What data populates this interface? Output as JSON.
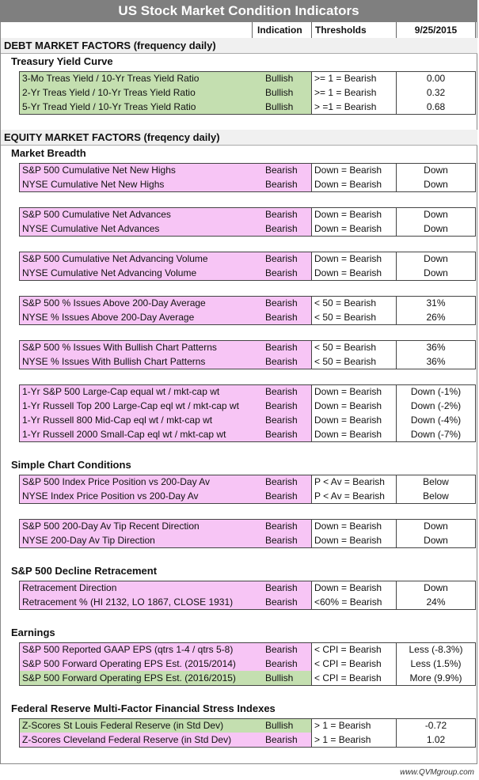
{
  "title": "US Stock Market Condition Indicators",
  "header": [
    "Indication",
    "Thresholds",
    "9/25/2015"
  ],
  "sections": [
    {
      "title": "DEBT MARKET FACTORS (frequency daily)",
      "subsections": [
        {
          "title": "Treasury Yield Curve",
          "groups": [
            [
              {
                "label": "3-Mo Treas Yield / 10-Yr Treas Yield Ratio",
                "indication": "Bullish",
                "threshold": ">= 1 = Bearish",
                "value": "0.00"
              },
              {
                "label": "2-Yr Treas Yield / 10-Yr Treas Yield Ratio",
                "indication": "Bullish",
                "threshold": ">= 1 = Bearish",
                "value": "0.32"
              },
              {
                "label": "5-Yr Tread Yield / 10-Yr Treas Yield Ratio",
                "indication": "Bullish",
                "threshold": "> =1 = Bearish",
                "value": "0.68"
              }
            ]
          ]
        }
      ]
    },
    {
      "title": "EQUITY MARKET FACTORS (freqency daily)",
      "subsections": [
        {
          "title": "Market Breadth",
          "groups": [
            [
              {
                "label": "S&P 500 Cumulative Net New Highs",
                "indication": "Bearish",
                "threshold": "Down = Bearish",
                "value": "Down"
              },
              {
                "label": "NYSE Cumulative Net New Highs",
                "indication": "Bearish",
                "threshold": "Down = Bearish",
                "value": "Down"
              }
            ],
            [
              {
                "label": "S&P 500 Cumulative Net Advances",
                "indication": "Bearish",
                "threshold": "Down = Bearish",
                "value": "Down"
              },
              {
                "label": "NYSE Cumulative Net Advances",
                "indication": "Bearish",
                "threshold": "Down = Bearish",
                "value": "Down"
              }
            ],
            [
              {
                "label": "S&P 500 Cumulative Net Advancing Volume",
                "indication": "Bearish",
                "threshold": "Down = Bearish",
                "value": "Down"
              },
              {
                "label": "NYSE Cumulative Net Advancing Volume",
                "indication": "Bearish",
                "threshold": "Down = Bearish",
                "value": "Down"
              }
            ],
            [
              {
                "label": "S&P 500 % Issues Above 200-Day Average",
                "indication": "Bearish",
                "threshold": "< 50 = Bearish",
                "value": "31%"
              },
              {
                "label": "NYSE % Issues Above 200-Day Average",
                "indication": "Bearish",
                "threshold": "< 50 = Bearish",
                "value": "26%"
              }
            ],
            [
              {
                "label": "S&P 500 % Issues With Bullish Chart Patterns",
                "indication": "Bearish",
                "threshold": "< 50 = Bearish",
                "value": "36%"
              },
              {
                "label": "NYSE % Issues With Bullish Chart Patterns",
                "indication": "Bearish",
                "threshold": "< 50 = Bearish",
                "value": "36%"
              }
            ],
            [
              {
                "label": "1-Yr S&P 500 Large-Cap equal wt / mkt-cap wt",
                "indication": "Bearish",
                "threshold": "Down = Bearish",
                "value": "Down (-1%)"
              },
              {
                "label": "1-Yr Russell Top 200 Large-Cap eql wt / mkt-cap wt",
                "indication": "Bearish",
                "threshold": "Down = Bearish",
                "value": "Down (-2%)"
              },
              {
                "label": "1-Yr Russell 800 Mid-Cap eql wt / mkt-cap wt",
                "indication": "Bearish",
                "threshold": "Down = Bearish",
                "value": "Down (-4%)"
              },
              {
                "label": "1-Yr Russell 2000 Small-Cap eql wt / mkt-cap wt",
                "indication": "Bearish",
                "threshold": "Down = Bearish",
                "value": "Down (-7%)"
              }
            ]
          ]
        },
        {
          "title": "Simple Chart Conditions",
          "groups": [
            [
              {
                "label": "S&P 500 Index Price Position vs 200-Day Av",
                "indication": "Bearish",
                "threshold": "P < Av = Bearish",
                "value": "Below"
              },
              {
                "label": "NYSE Index Price Position vs 200-Day Av",
                "indication": "Bearish",
                "threshold": "P < Av = Bearish",
                "value": "Below"
              }
            ],
            [
              {
                "label": "S&P 500 200-Day Av Tip Recent Direction",
                "indication": "Bearish",
                "threshold": "Down = Bearish",
                "value": "Down"
              },
              {
                "label": "NYSE 200-Day Av Tip Direction",
                "indication": "Bearish",
                "threshold": "Down = Bearish",
                "value": "Down"
              }
            ]
          ]
        },
        {
          "title": "S&P 500 Decline Retracement",
          "groups": [
            [
              {
                "label": "Retracement Direction",
                "indication": "Bearish",
                "threshold": "Down = Bearish",
                "value": "Down"
              },
              {
                "label": "Retracement % (HI 2132, LO 1867, CLOSE 1931)",
                "indication": "Bearish",
                "threshold": "<60% = Bearish",
                "value": "24%"
              }
            ]
          ]
        },
        {
          "title": "Earnings",
          "groups": [
            [
              {
                "label": "S&P 500 Reported GAAP EPS  (qtrs 1-4 / qtrs 5-8)",
                "indication": "Bearish",
                "threshold": "< CPI = Bearish",
                "value": "Less (-8.3%)"
              },
              {
                "label": "S&P 500 Forward Operating EPS  Est. (2015/2014)",
                "indication": "Bearish",
                "threshold": "< CPI = Bearish",
                "value": "Less (1.5%)"
              },
              {
                "label": "S&P 500 Forward Operating EPS  Est. (2016/2015)",
                "indication": "Bullish",
                "threshold": "< CPI = Bearish",
                "value": "More (9.9%)"
              }
            ]
          ]
        },
        {
          "title": "Federal Reserve Multi-Factor Financial Stress Indexes",
          "groups": [
            [
              {
                "label": "Z-Scores St Louis Federal Reserve (in Std Dev)",
                "indication": "Bullish",
                "threshold": "> 1 = Bearish",
                "value": "-0.72"
              },
              {
                "label": "Z-Scores Cleveland Federal Reserve (in Std Dev)",
                "indication": "Bearish",
                "threshold": "> 1 = Bearish",
                "value": "1.02"
              }
            ]
          ]
        }
      ]
    }
  ],
  "footer": "www.QVMgroup.com"
}
